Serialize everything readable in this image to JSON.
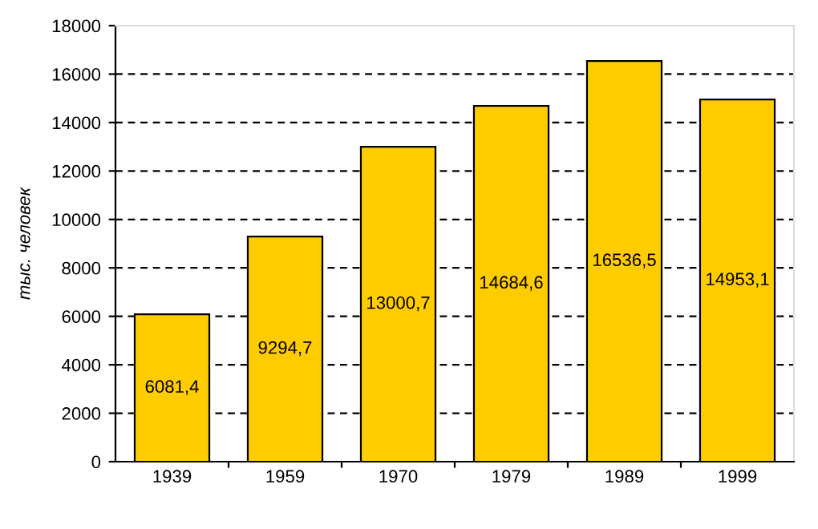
{
  "chart_data": {
    "type": "bar",
    "ylabel": "тыс. человек",
    "categories": [
      "1939",
      "1959",
      "1970",
      "1979",
      "1989",
      "1999"
    ],
    "values": [
      6081.4,
      9294.7,
      13000.7,
      14684.6,
      16536.5,
      14953.1
    ],
    "value_labels": [
      "6081,4",
      "9294,7",
      "13000,7",
      "14684,6",
      "16536,5",
      "14953,1"
    ],
    "color": "#ffcc00",
    "ylim": [
      0,
      18000
    ],
    "yticks": [
      0,
      2000,
      4000,
      6000,
      8000,
      10000,
      12000,
      14000,
      16000,
      18000
    ],
    "grid": "y",
    "legend": false
  }
}
